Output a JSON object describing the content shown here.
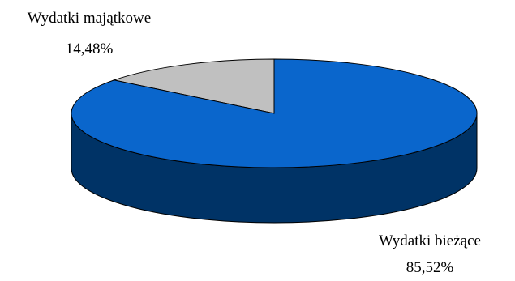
{
  "chart_data": {
    "type": "pie",
    "style": "3d",
    "categories": [
      "Wydatki bieżące",
      "Wydatki majątkowe"
    ],
    "values": [
      85.52,
      14.48
    ],
    "value_labels": [
      "85,52%",
      "14,48%"
    ],
    "colors": [
      "#0A66CC",
      "#C0C0C0"
    ],
    "side_colors": [
      "#003366",
      "#8C8C8C"
    ],
    "title": "",
    "legend": "none"
  }
}
